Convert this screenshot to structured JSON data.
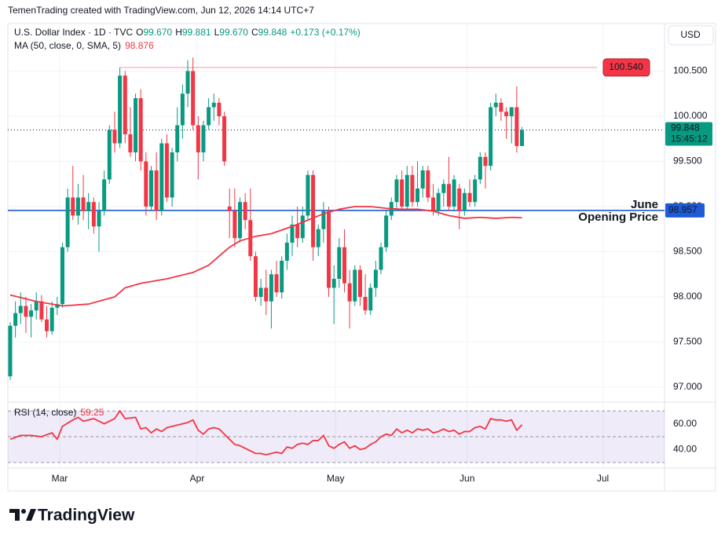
{
  "header": {
    "attribution": "TemenTrading created with TradingView.com, Jun 12, 2026 14:14 UTC+7",
    "symbol": "U.S. Dollar Index · 1D · TVC",
    "legend": [
      "O",
      "99.670",
      "H",
      "99.881",
      "L",
      "99.670",
      "C",
      "99.848",
      "+0.173 (+0.17%)"
    ],
    "currency": "USD",
    "brand": "TradingView"
  },
  "chart_data": {
    "type": "candlestick",
    "up_color": "#089981",
    "down_color": "#f23645",
    "grid": true,
    "xlim": [
      -0.45,
      125.3
    ],
    "xticks": [
      {
        "value": 9.47,
        "label": "Mar"
      },
      {
        "value": 35.8,
        "label": "Apr"
      },
      {
        "value": 62.3,
        "label": "May"
      },
      {
        "value": 87.5,
        "label": "Jun"
      },
      {
        "value": 113.5,
        "label": "Jul"
      }
    ],
    "ylim": [
      96.852,
      101.026
    ],
    "yticks": [
      {
        "value": 97,
        "label": "97.000"
      },
      {
        "value": 97.5,
        "label": "97.500"
      },
      {
        "value": 98,
        "label": "98.000"
      },
      {
        "value": 98.5,
        "label": "98.500"
      },
      {
        "value": 99,
        "label": "99.000"
      },
      {
        "value": 99.5,
        "label": "99.500"
      },
      {
        "value": 100,
        "label": "100.000"
      },
      {
        "value": 100.5,
        "label": "100.500"
      }
    ],
    "x": [
      0,
      1,
      2,
      3,
      4,
      5,
      6,
      7,
      8,
      9,
      10,
      11,
      12,
      13,
      14,
      15,
      16,
      17,
      18,
      19,
      20,
      21,
      22,
      23,
      24,
      25,
      26,
      27,
      28,
      29,
      30,
      31,
      32,
      33,
      34,
      35,
      36,
      37,
      38,
      39,
      40,
      41,
      42,
      43,
      44,
      45,
      46,
      47,
      48,
      49,
      50,
      51,
      52,
      53,
      54,
      55,
      56,
      57,
      58,
      59,
      60,
      61,
      62,
      63,
      64,
      65,
      66,
      67,
      68,
      69,
      70,
      71,
      72,
      73,
      74,
      75,
      76,
      77,
      78,
      79,
      80,
      81,
      82,
      83,
      84,
      85,
      86,
      87,
      88,
      89,
      90,
      91,
      92,
      93,
      94,
      95,
      96,
      97,
      98
    ],
    "ohlc": [
      [
        97.12,
        97.72,
        97.08,
        97.68
      ],
      [
        97.68,
        97.95,
        97.55,
        97.82
      ],
      [
        97.82,
        98.05,
        97.7,
        97.9
      ],
      [
        97.9,
        98.0,
        97.6,
        97.78
      ],
      [
        97.78,
        97.92,
        97.55,
        97.85
      ],
      [
        97.85,
        98.05,
        97.75,
        97.95
      ],
      [
        97.95,
        98.02,
        97.72,
        97.75
      ],
      [
        97.75,
        97.9,
        97.55,
        97.62
      ],
      [
        97.62,
        97.95,
        97.58,
        97.88
      ],
      [
        97.88,
        98.0,
        97.8,
        97.92
      ],
      [
        97.92,
        98.6,
        97.88,
        98.55
      ],
      [
        98.55,
        99.2,
        98.5,
        99.1
      ],
      [
        99.1,
        99.45,
        98.85,
        98.9
      ],
      [
        98.9,
        99.25,
        98.8,
        99.1
      ],
      [
        99.1,
        99.35,
        98.85,
        98.95
      ],
      [
        98.95,
        99.15,
        98.75,
        99.05
      ],
      [
        99.05,
        99.1,
        98.7,
        98.78
      ],
      [
        98.78,
        99.05,
        98.5,
        98.95
      ],
      [
        98.95,
        99.4,
        98.9,
        99.3
      ],
      [
        99.3,
        99.9,
        99.25,
        99.85
      ],
      [
        99.85,
        100.05,
        99.6,
        99.7
      ],
      [
        99.7,
        100.54,
        99.65,
        100.45
      ],
      [
        100.45,
        100.5,
        99.7,
        99.8
      ],
      [
        99.8,
        100.1,
        99.55,
        99.6
      ],
      [
        99.6,
        100.25,
        99.5,
        100.2
      ],
      [
        100.2,
        100.3,
        99.4,
        99.5
      ],
      [
        99.5,
        99.6,
        98.9,
        99.0
      ],
      [
        99.0,
        99.45,
        98.95,
        99.4
      ],
      [
        99.4,
        99.6,
        98.85,
        98.95
      ],
      [
        98.95,
        99.75,
        98.9,
        99.7
      ],
      [
        99.7,
        99.8,
        99.05,
        99.1
      ],
      [
        99.1,
        99.65,
        99.0,
        99.6
      ],
      [
        99.6,
        100.1,
        99.5,
        99.9
      ],
      [
        99.9,
        100.35,
        99.75,
        100.25
      ],
      [
        100.25,
        100.62,
        100.1,
        100.5
      ],
      [
        100.5,
        100.65,
        99.85,
        99.9
      ],
      [
        99.9,
        100.0,
        99.3,
        99.6
      ],
      [
        99.6,
        99.95,
        99.5,
        99.9
      ],
      [
        99.9,
        100.2,
        99.85,
        100.1
      ],
      [
        100.1,
        100.25,
        99.95,
        100.15
      ],
      [
        100.15,
        100.2,
        99.9,
        100.0
      ],
      [
        100.0,
        100.05,
        99.45,
        99.5
      ],
      [
        99.0,
        99.2,
        98.65,
        98.95
      ],
      [
        98.95,
        99.2,
        98.55,
        98.65
      ],
      [
        98.65,
        99.1,
        98.6,
        99.05
      ],
      [
        99.05,
        99.15,
        98.75,
        98.85
      ],
      [
        98.85,
        99.2,
        98.4,
        98.45
      ],
      [
        98.45,
        98.5,
        97.95,
        98.0
      ],
      [
        98.0,
        98.2,
        97.9,
        98.1
      ],
      [
        98.1,
        98.3,
        97.8,
        97.95
      ],
      [
        97.95,
        98.3,
        97.65,
        98.25
      ],
      [
        98.25,
        98.4,
        98.0,
        98.05
      ],
      [
        98.05,
        98.45,
        97.98,
        98.4
      ],
      [
        98.4,
        98.7,
        98.3,
        98.6
      ],
      [
        98.6,
        98.9,
        98.45,
        98.8
      ],
      [
        98.8,
        99.0,
        98.55,
        98.65
      ],
      [
        98.65,
        99.0,
        98.6,
        98.9
      ],
      [
        98.9,
        99.4,
        98.85,
        99.35
      ],
      [
        99.35,
        99.4,
        98.4,
        98.55
      ],
      [
        98.55,
        98.8,
        98.45,
        98.75
      ],
      [
        98.75,
        99.05,
        98.6,
        98.95
      ],
      [
        98.95,
        99.0,
        98.0,
        98.1
      ],
      [
        98.1,
        98.35,
        97.7,
        98.2
      ],
      [
        98.2,
        98.65,
        98.1,
        98.55
      ],
      [
        98.55,
        98.75,
        98.05,
        98.15
      ],
      [
        98.15,
        98.3,
        97.65,
        97.95
      ],
      [
        97.95,
        98.35,
        97.9,
        98.3
      ],
      [
        98.3,
        98.35,
        97.9,
        98.0
      ],
      [
        98.0,
        98.25,
        97.8,
        97.85
      ],
      [
        97.85,
        98.15,
        97.8,
        98.1
      ],
      [
        98.1,
        98.4,
        98.0,
        98.3
      ],
      [
        98.3,
        98.6,
        98.25,
        98.55
      ],
      [
        98.55,
        98.95,
        98.5,
        98.9
      ],
      [
        98.9,
        99.1,
        98.85,
        99.05
      ],
      [
        99.05,
        99.35,
        98.95,
        99.3
      ],
      [
        99.3,
        99.4,
        98.95,
        99.0
      ],
      [
        99.0,
        99.45,
        98.95,
        99.35
      ],
      [
        99.35,
        99.45,
        99.0,
        99.05
      ],
      [
        99.05,
        99.5,
        99.0,
        99.2
      ],
      [
        99.2,
        99.45,
        99.1,
        99.4
      ],
      [
        99.4,
        99.45,
        99.05,
        99.1
      ],
      [
        99.1,
        99.25,
        98.9,
        98.95
      ],
      [
        98.95,
        99.2,
        98.9,
        99.15
      ],
      [
        99.15,
        99.3,
        99.0,
        99.25
      ],
      [
        99.25,
        99.55,
        98.95,
        99.0
      ],
      [
        99.0,
        99.35,
        98.95,
        99.3
      ],
      [
        99.2,
        99.25,
        98.75,
        98.95
      ],
      [
        98.95,
        99.2,
        98.9,
        99.15
      ],
      [
        99.15,
        99.3,
        99.0,
        99.05
      ],
      [
        99.05,
        99.35,
        99.0,
        99.3
      ],
      [
        99.3,
        99.6,
        99.25,
        99.55
      ],
      [
        99.55,
        99.6,
        99.2,
        99.45
      ],
      [
        99.45,
        100.15,
        99.4,
        100.1
      ],
      [
        100.1,
        100.25,
        100.0,
        100.15
      ],
      [
        100.15,
        100.2,
        99.95,
        100.05
      ],
      [
        100.05,
        100.1,
        99.75,
        100.0
      ],
      [
        100.0,
        100.1,
        99.7,
        100.1
      ],
      [
        100.1,
        100.33,
        99.6,
        99.67
      ],
      [
        99.67,
        99.881,
        99.67,
        99.848
      ]
    ],
    "ma": {
      "name": "MA (50, close, 0, SMA, 5)",
      "color": "#f23645",
      "x": [
        0,
        5,
        10,
        15,
        20,
        22,
        25,
        30,
        35,
        38,
        40,
        42,
        44,
        47,
        50,
        54,
        57,
        60,
        63,
        66,
        69,
        72,
        75,
        78,
        81,
        84,
        87,
        90,
        93,
        96,
        98
      ],
      "values": [
        98.02,
        97.95,
        97.9,
        97.92,
        98.0,
        98.1,
        98.15,
        98.2,
        98.27,
        98.35,
        98.45,
        98.55,
        98.62,
        98.67,
        98.7,
        98.78,
        98.85,
        98.92,
        98.97,
        99.0,
        99.0,
        98.98,
        98.97,
        98.97,
        98.95,
        98.9,
        98.87,
        98.88,
        98.87,
        98.88,
        98.876
      ]
    },
    "lines": [
      {
        "value": 100.54,
        "label": "100.540",
        "color": "#f23645",
        "x_start": 21
      },
      {
        "value": 98.957,
        "label": "98.957",
        "color": "#1e5bd6",
        "annotation": [
          "June",
          "Opening Price"
        ]
      }
    ],
    "last_price": {
      "value": 99.848,
      "label": "99.848",
      "countdown": "15:45:12",
      "color": "#089981"
    },
    "rsi": {
      "name": "RSI (14, close)",
      "color": "#f23645",
      "band": [
        30,
        70
      ],
      "middle": 50,
      "ylim": [
        26.25,
        75.6
      ],
      "yticks": [
        {
          "value": 60,
          "label": "60.00"
        },
        {
          "value": 40,
          "label": "40.00"
        }
      ],
      "x": [
        0,
        2,
        4,
        6,
        8,
        9,
        10,
        12,
        13,
        14,
        16,
        18,
        20,
        21,
        22,
        24,
        25,
        26,
        27,
        28,
        29,
        30,
        32,
        34,
        35,
        36,
        37,
        38,
        39,
        40,
        41,
        42,
        43,
        44,
        45,
        46,
        47,
        48,
        49,
        50,
        51,
        52,
        53,
        54,
        55,
        56,
        57,
        58,
        59,
        60,
        61,
        62,
        63,
        64,
        65,
        66,
        67,
        68,
        69,
        70,
        71,
        72,
        73,
        74,
        75,
        76,
        77,
        78,
        79,
        80,
        81,
        82,
        83,
        84,
        85,
        86,
        87,
        88,
        89,
        90,
        91,
        92,
        93,
        94,
        95,
        96,
        97,
        98
      ],
      "values": [
        48,
        51,
        51,
        50,
        53,
        48,
        58,
        63,
        65,
        62,
        64,
        60,
        64,
        70,
        64,
        65,
        56,
        57,
        53,
        56,
        54,
        57,
        59,
        61,
        63,
        55,
        52,
        56,
        57,
        56,
        52,
        48,
        44,
        43,
        41,
        39,
        37,
        37,
        36,
        37,
        38,
        37,
        42,
        41,
        44,
        45,
        44,
        47,
        47,
        51,
        43,
        41,
        44,
        46,
        41,
        43,
        40,
        41,
        44,
        46,
        50,
        52,
        51,
        56,
        53,
        55,
        53,
        56,
        55,
        56,
        53,
        54,
        56,
        54,
        55,
        52,
        54,
        54,
        57,
        58,
        56,
        64,
        63,
        63,
        62,
        63,
        55,
        59.25
      ]
    }
  }
}
